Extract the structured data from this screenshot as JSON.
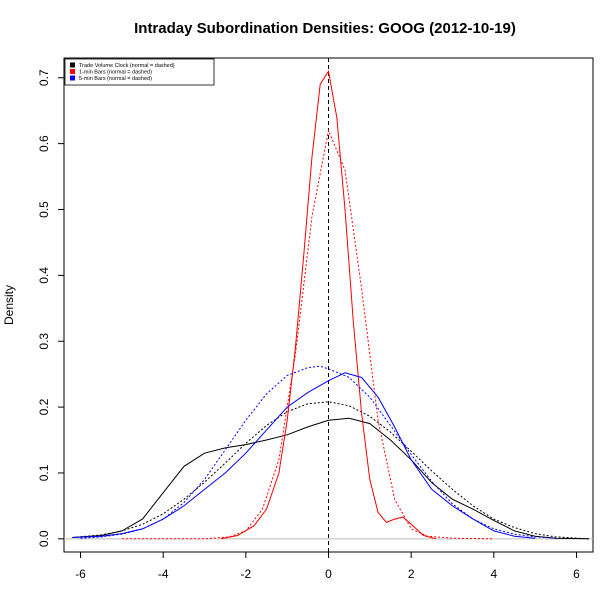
{
  "chart_data": {
    "type": "line",
    "title": "Intraday Subordination Densities: GOOG (2012-10-19)",
    "xlabel": "",
    "ylabel": "Density",
    "xlim": [
      -6.4,
      6.4
    ],
    "ylim": [
      -0.02,
      0.73
    ],
    "x_ticks": [
      -6,
      -4,
      -2,
      0,
      2,
      4,
      6
    ],
    "y_ticks": [
      0.0,
      0.1,
      0.2,
      0.3,
      0.4,
      0.5,
      0.6,
      0.7
    ],
    "x_tick_labels": [
      "-6",
      "-4",
      "-2",
      "0",
      "2",
      "4",
      "6"
    ],
    "y_tick_labels": [
      "0.0",
      "0.1",
      "0.2",
      "0.3",
      "0.4",
      "0.5",
      "0.6",
      "0.7"
    ],
    "vline_x": 0,
    "hline_y": 0,
    "legend": {
      "position": "top-left",
      "entries": [
        {
          "label": "Trade Volume Clock (normal = dashed)",
          "color": "#000000"
        },
        {
          "label": "1-min Bars (normal = dashed)",
          "color": "#ff0000"
        },
        {
          "label": "5-min Bars (normal = dashed)",
          "color": "#0000ff"
        }
      ]
    },
    "series": [
      {
        "color": "#000000",
        "style": "solid",
        "x": [
          -6.2,
          -5.5,
          -5.0,
          -4.5,
          -4.0,
          -3.5,
          -3.0,
          -2.5,
          -2.0,
          -1.5,
          -1.0,
          -0.5,
          0.0,
          0.5,
          1.0,
          1.5,
          2.0,
          2.5,
          3.0,
          3.5,
          4.0,
          4.5,
          5.0,
          5.5,
          6.3
        ],
        "y": [
          0.002,
          0.005,
          0.012,
          0.03,
          0.07,
          0.11,
          0.13,
          0.138,
          0.143,
          0.15,
          0.158,
          0.17,
          0.18,
          0.183,
          0.175,
          0.15,
          0.12,
          0.085,
          0.06,
          0.045,
          0.028,
          0.012,
          0.004,
          0.001,
          0.0
        ]
      },
      {
        "color": "#000000",
        "style": "dashed",
        "x": [
          -6.2,
          -5.5,
          -5.0,
          -4.5,
          -4.0,
          -3.5,
          -3.0,
          -2.5,
          -2.0,
          -1.5,
          -1.0,
          -0.5,
          0.0,
          0.5,
          1.0,
          1.5,
          2.0,
          2.5,
          3.0,
          3.5,
          4.0,
          4.5,
          5.0,
          5.5,
          6.3
        ],
        "y": [
          0.002,
          0.006,
          0.012,
          0.022,
          0.038,
          0.06,
          0.086,
          0.115,
          0.145,
          0.172,
          0.193,
          0.205,
          0.208,
          0.202,
          0.186,
          0.162,
          0.133,
          0.103,
          0.075,
          0.05,
          0.03,
          0.017,
          0.008,
          0.003,
          0.0
        ]
      },
      {
        "color": "#ff0000",
        "style": "solid",
        "x": [
          -2.6,
          -2.2,
          -1.8,
          -1.5,
          -1.2,
          -1.0,
          -0.8,
          -0.6,
          -0.4,
          -0.2,
          0.0,
          0.2,
          0.4,
          0.6,
          0.8,
          1.0,
          1.2,
          1.4,
          1.6,
          1.8,
          2.0,
          2.3,
          2.6
        ],
        "y": [
          0.0,
          0.005,
          0.02,
          0.045,
          0.1,
          0.18,
          0.29,
          0.43,
          0.58,
          0.69,
          0.71,
          0.64,
          0.5,
          0.33,
          0.19,
          0.09,
          0.04,
          0.025,
          0.03,
          0.033,
          0.022,
          0.005,
          0.0
        ]
      },
      {
        "color": "#ff0000",
        "style": "dashed",
        "x": [
          -5.0,
          -3.0,
          -2.4,
          -2.0,
          -1.6,
          -1.2,
          -0.8,
          -0.4,
          0.0,
          0.4,
          0.8,
          1.2,
          1.6,
          2.0,
          2.4,
          3.0,
          4.0
        ],
        "y": [
          0.0,
          0.0,
          0.003,
          0.012,
          0.045,
          0.12,
          0.28,
          0.49,
          0.62,
          0.56,
          0.38,
          0.18,
          0.06,
          0.015,
          0.004,
          0.001,
          0.0
        ]
      },
      {
        "color": "#0000ff",
        "style": "solid",
        "x": [
          -6.2,
          -5.5,
          -5.0,
          -4.5,
          -4.0,
          -3.5,
          -3.0,
          -2.5,
          -2.0,
          -1.5,
          -1.0,
          -0.5,
          0.0,
          0.4,
          0.8,
          1.2,
          1.6,
          2.0,
          2.5,
          3.0,
          3.5,
          4.0,
          4.5,
          5.0
        ],
        "y": [
          0.002,
          0.004,
          0.008,
          0.015,
          0.03,
          0.05,
          0.075,
          0.1,
          0.13,
          0.165,
          0.2,
          0.222,
          0.24,
          0.252,
          0.245,
          0.215,
          0.17,
          0.12,
          0.075,
          0.05,
          0.03,
          0.012,
          0.004,
          0.001
        ]
      },
      {
        "color": "#0000ff",
        "style": "dashed",
        "x": [
          -6.0,
          -5.5,
          -5.0,
          -4.5,
          -4.0,
          -3.5,
          -3.0,
          -2.5,
          -2.0,
          -1.5,
          -1.0,
          -0.5,
          -0.2,
          0.0,
          0.5,
          1.0,
          1.5,
          2.0,
          2.5,
          3.0,
          3.5,
          4.0,
          4.5,
          5.0,
          5.5
        ],
        "y": [
          0.001,
          0.003,
          0.007,
          0.015,
          0.03,
          0.055,
          0.09,
          0.135,
          0.18,
          0.22,
          0.248,
          0.26,
          0.262,
          0.258,
          0.245,
          0.215,
          0.172,
          0.128,
          0.087,
          0.053,
          0.03,
          0.015,
          0.007,
          0.003,
          0.001
        ]
      }
    ]
  }
}
